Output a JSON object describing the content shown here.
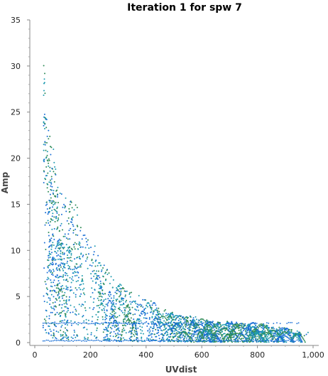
{
  "chart_data": {
    "type": "scatter",
    "title": "Iteration 1 for spw 7",
    "xlabel": "UVdist",
    "ylabel": "Amp",
    "xlim": [
      0,
      1000
    ],
    "ylim": [
      0,
      35
    ],
    "x_ticks": [
      "0",
      "200",
      "400",
      "600",
      "800",
      "1,000"
    ],
    "y_ticks": [
      "0",
      "5",
      "10",
      "15",
      "20",
      "25",
      "30",
      "35"
    ],
    "grid": false,
    "legend": "none",
    "colors": [
      "#1a6fd6",
      "#1f9bb0",
      "#2e8b57"
    ],
    "envelope": [
      [
        35,
        30.5
      ],
      [
        40,
        27.0
      ],
      [
        45,
        24.0
      ],
      [
        55,
        23.5
      ],
      [
        65,
        22.5
      ],
      [
        75,
        19.0
      ],
      [
        90,
        16.5
      ],
      [
        110,
        16.0
      ],
      [
        130,
        15.5
      ],
      [
        150,
        15.0
      ],
      [
        170,
        14.0
      ],
      [
        190,
        12.5
      ],
      [
        210,
        11.0
      ],
      [
        240,
        9.0
      ],
      [
        270,
        7.5
      ],
      [
        300,
        6.5
      ],
      [
        340,
        5.6
      ],
      [
        380,
        5.2
      ],
      [
        420,
        4.5
      ],
      [
        460,
        3.8
      ],
      [
        500,
        3.2
      ],
      [
        540,
        3.0
      ],
      [
        580,
        2.8
      ],
      [
        620,
        2.5
      ],
      [
        660,
        2.5
      ],
      [
        700,
        2.3
      ],
      [
        740,
        2.2
      ],
      [
        780,
        2.2
      ],
      [
        820,
        2.0
      ],
      [
        860,
        1.7
      ],
      [
        900,
        1.6
      ],
      [
        950,
        1.2
      ],
      [
        980,
        1.1
      ]
    ],
    "baseline_levels": [
      0.2,
      2.1
    ],
    "baseline_range": [
      30,
      960
    ]
  }
}
